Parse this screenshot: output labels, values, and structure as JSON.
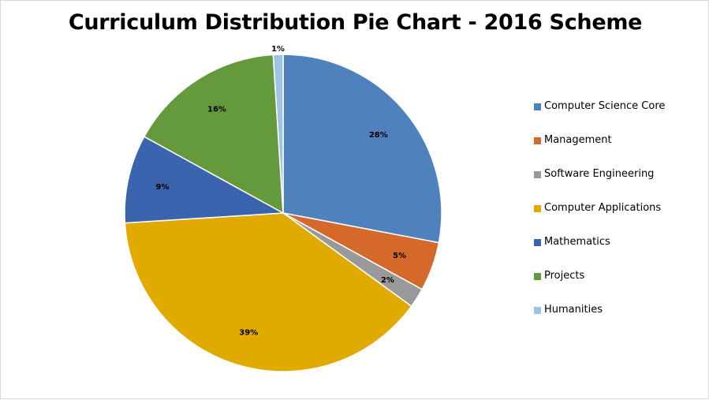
{
  "chart_data": {
    "type": "pie",
    "title": "Curriculum Distribution Pie Chart - 2016 Scheme",
    "legend_position": "right",
    "slices": [
      {
        "label": "Computer Science Core",
        "value": 28,
        "data_label": "28%",
        "color": "#4F81BD"
      },
      {
        "label": "Management",
        "value": 5,
        "data_label": "5%",
        "color": "#D4692B"
      },
      {
        "label": "Software Engineering",
        "value": 2,
        "data_label": "2%",
        "color": "#999999"
      },
      {
        "label": "Computer Applications",
        "value": 39,
        "data_label": "39%",
        "color": "#E0AA00"
      },
      {
        "label": "Mathematics",
        "value": 9,
        "data_label": "9%",
        "color": "#3B64AE"
      },
      {
        "label": "Projects",
        "value": 16,
        "data_label": "16%",
        "color": "#659A3C"
      },
      {
        "label": "Humanities",
        "value": 1,
        "data_label": "1%",
        "color": "#9DC3E6"
      }
    ]
  }
}
